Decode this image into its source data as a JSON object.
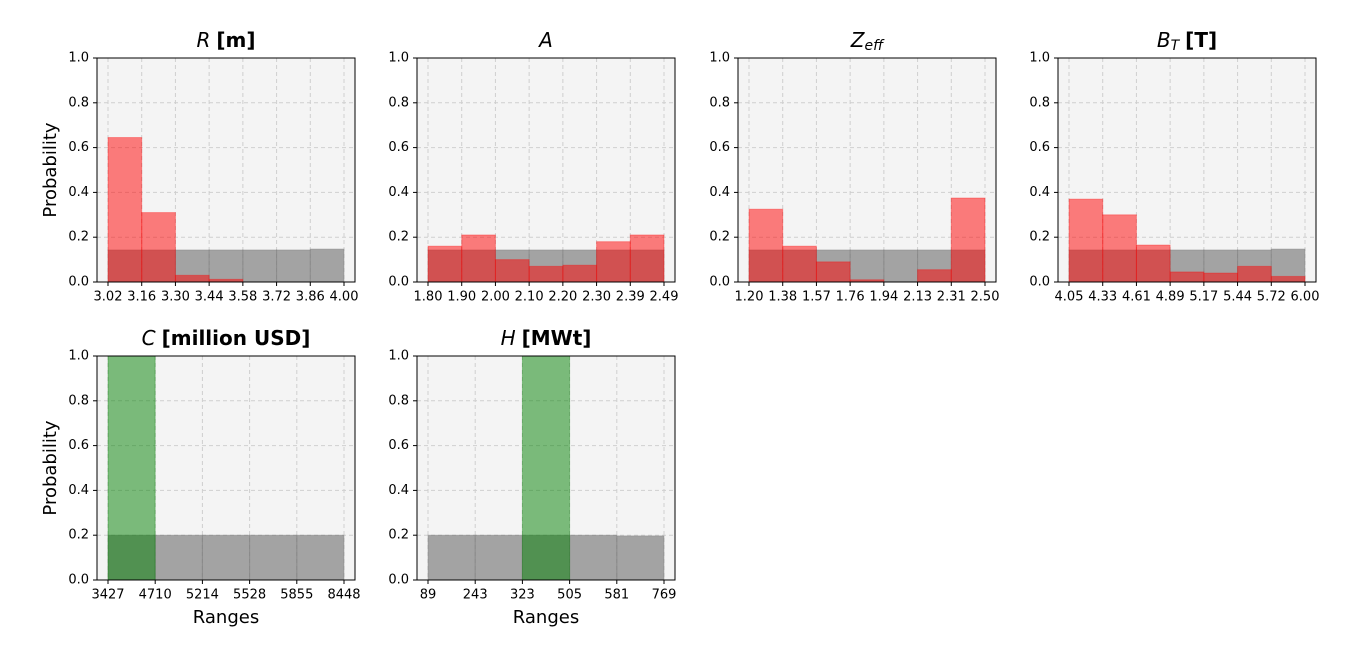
{
  "chart_data": [
    {
      "type": "histogram",
      "title": {
        "symbol": "R",
        "unit": "[m]"
      },
      "ylabel": "Probability",
      "bins": [
        "3.02",
        "3.16",
        "3.30",
        "3.44",
        "3.58",
        "3.72",
        "3.86",
        "4.00"
      ],
      "series": [
        {
          "color": "gray",
          "alpha": 0.7,
          "values": [
            0.143,
            0.143,
            0.143,
            0.143,
            0.143,
            0.143,
            0.147
          ]
        },
        {
          "color": "red",
          "alpha": 0.5,
          "values": [
            0.645,
            0.31,
            0.03,
            0.012,
            0,
            0,
            0
          ]
        }
      ],
      "ylim": [
        0,
        1
      ],
      "yticks": [
        {
          "value": 0,
          "label": "0.0"
        },
        {
          "value": 0.2,
          "label": "0.2"
        },
        {
          "value": 0.4,
          "label": "0.4"
        },
        {
          "value": 0.6,
          "label": "0.6"
        },
        {
          "value": 0.8,
          "label": "0.8"
        },
        {
          "value": 1,
          "label": "1.0"
        }
      ],
      "grid": true
    },
    {
      "type": "histogram",
      "title": {
        "symbol": "A"
      },
      "bins": [
        "1.80",
        "1.90",
        "2.00",
        "2.10",
        "2.20",
        "2.30",
        "2.39",
        "2.49"
      ],
      "series": [
        {
          "color": "gray",
          "alpha": 0.7,
          "values": [
            0.143,
            0.143,
            0.143,
            0.143,
            0.143,
            0.143,
            0.143
          ]
        },
        {
          "color": "red",
          "alpha": 0.5,
          "values": [
            0.16,
            0.21,
            0.1,
            0.07,
            0.075,
            0.18,
            0.21
          ]
        }
      ],
      "ylim": [
        0,
        1
      ],
      "yticks": [
        {
          "value": 0,
          "label": "0.0"
        },
        {
          "value": 0.2,
          "label": "0.2"
        },
        {
          "value": 0.4,
          "label": "0.4"
        },
        {
          "value": 0.6,
          "label": "0.6"
        },
        {
          "value": 0.8,
          "label": "0.8"
        },
        {
          "value": 1,
          "label": "1.0"
        }
      ],
      "grid": true
    },
    {
      "type": "histogram",
      "title": {
        "symbol": "Z",
        "subscript": "eff"
      },
      "bins": [
        "1.20",
        "1.38",
        "1.57",
        "1.76",
        "1.94",
        "2.13",
        "2.31",
        "2.50"
      ],
      "series": [
        {
          "color": "gray",
          "alpha": 0.7,
          "values": [
            0.143,
            0.143,
            0.143,
            0.143,
            0.143,
            0.143,
            0.143
          ]
        },
        {
          "color": "red",
          "alpha": 0.5,
          "values": [
            0.325,
            0.16,
            0.09,
            0.01,
            0,
            0.055,
            0.375
          ]
        }
      ],
      "ylim": [
        0,
        1
      ],
      "yticks": [
        {
          "value": 0,
          "label": "0.0"
        },
        {
          "value": 0.2,
          "label": "0.2"
        },
        {
          "value": 0.4,
          "label": "0.4"
        },
        {
          "value": 0.6,
          "label": "0.6"
        },
        {
          "value": 0.8,
          "label": "0.8"
        },
        {
          "value": 1,
          "label": "1.0"
        }
      ],
      "grid": true
    },
    {
      "type": "histogram",
      "title": {
        "symbol": "B",
        "subscript": "T",
        "unit": "[T]"
      },
      "bins": [
        "4.05",
        "4.33",
        "4.61",
        "4.89",
        "5.17",
        "5.44",
        "5.72",
        "6.00"
      ],
      "series": [
        {
          "color": "gray",
          "alpha": 0.7,
          "values": [
            0.143,
            0.143,
            0.143,
            0.143,
            0.143,
            0.143,
            0.147
          ]
        },
        {
          "color": "red",
          "alpha": 0.5,
          "values": [
            0.37,
            0.3,
            0.165,
            0.045,
            0.04,
            0.07,
            0.025
          ]
        }
      ],
      "ylim": [
        0,
        1
      ],
      "yticks": [
        {
          "value": 0,
          "label": "0.0"
        },
        {
          "value": 0.2,
          "label": "0.2"
        },
        {
          "value": 0.4,
          "label": "0.4"
        },
        {
          "value": 0.6,
          "label": "0.6"
        },
        {
          "value": 0.8,
          "label": "0.8"
        },
        {
          "value": 1,
          "label": "1.0"
        }
      ],
      "grid": true
    },
    {
      "type": "histogram",
      "title": {
        "symbol": "C",
        "unit": "[million USD]"
      },
      "ylabel": "Probability",
      "xlabel": "Ranges",
      "bins": [
        "3427",
        "4710",
        "5214",
        "5528",
        "5855",
        "8448"
      ],
      "series": [
        {
          "color": "gray",
          "alpha": 0.7,
          "values": [
            0.2,
            0.2,
            0.2,
            0.2,
            0.2
          ]
        },
        {
          "color": "green",
          "alpha": 0.5,
          "values": [
            1,
            0,
            0,
            0,
            0
          ]
        }
      ],
      "ylim": [
        0,
        1
      ],
      "yticks": [
        {
          "value": 0,
          "label": "0.0"
        },
        {
          "value": 0.2,
          "label": "0.2"
        },
        {
          "value": 0.4,
          "label": "0.4"
        },
        {
          "value": 0.6,
          "label": "0.6"
        },
        {
          "value": 0.8,
          "label": "0.8"
        },
        {
          "value": 1,
          "label": "1.0"
        }
      ],
      "grid": true
    },
    {
      "type": "histogram",
      "title": {
        "symbol": "H",
        "unit": "[MWt]"
      },
      "xlabel": "Ranges",
      "bins": [
        "89",
        "243",
        "323",
        "505",
        "581",
        "769"
      ],
      "series": [
        {
          "color": "gray",
          "alpha": 0.7,
          "values": [
            0.2,
            0.2,
            0.2,
            0.2,
            0.197
          ]
        },
        {
          "color": "green",
          "alpha": 0.5,
          "values": [
            0,
            0,
            1,
            0,
            0
          ]
        }
      ],
      "ylim": [
        0,
        1
      ],
      "yticks": [
        {
          "value": 0,
          "label": "0.0"
        },
        {
          "value": 0.2,
          "label": "0.2"
        },
        {
          "value": 0.4,
          "label": "0.4"
        },
        {
          "value": 0.6,
          "label": "0.6"
        },
        {
          "value": 0.8,
          "label": "0.8"
        },
        {
          "value": 1,
          "label": "1.0"
        }
      ],
      "grid": true
    }
  ]
}
